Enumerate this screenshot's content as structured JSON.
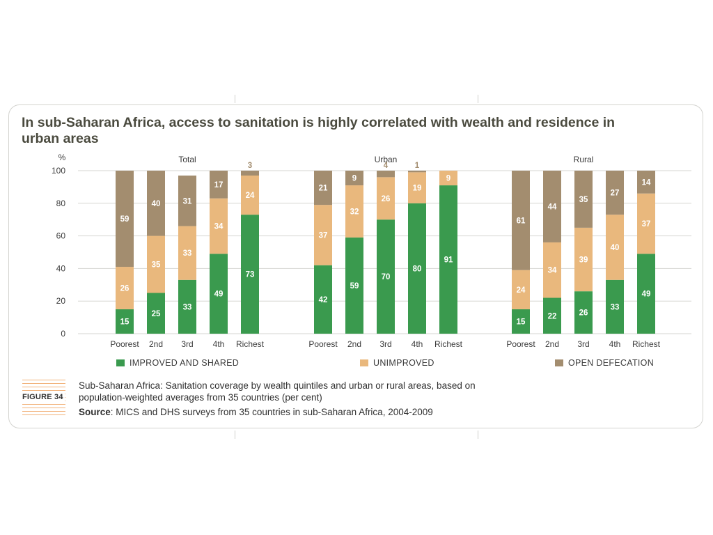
{
  "title": "In sub-Saharan Africa, access to sanitation is highly correlated with wealth and residence in urban areas",
  "figure_label": "FIGURE 34",
  "caption": "Sub-Saharan Africa: Sanitation coverage by wealth quintiles and urban or rural areas, based on population-weighted averages from 35 countries (per cent)",
  "source_label": "Source",
  "source_text": ": MICS and DHS surveys from 35 countries in sub-Saharan Africa, 2004-2009",
  "colors": {
    "improved": "#3a9a4e",
    "unimproved": "#e9b87d",
    "open_defecation": "#a38d6f",
    "label_inside": "#ffffff",
    "label_outside": "#a38d6f"
  },
  "chart_data": {
    "type": "bar",
    "stacked": true,
    "ylabel": "%",
    "ylim": [
      0,
      100
    ],
    "yticks": [
      "0",
      "20",
      "40",
      "60",
      "80",
      "100"
    ],
    "grid": true,
    "legend_position": "bottom",
    "series_names": [
      "IMPROVED AND SHARED",
      "UNIMPROVED",
      "OPEN DEFECATION"
    ],
    "panels": [
      {
        "name": "Total",
        "categories": [
          "Poorest",
          "2nd",
          "3rd",
          "4th",
          "Richest"
        ],
        "series": [
          {
            "name": "IMPROVED AND SHARED",
            "values": [
              15,
              25,
              33,
              49,
              73
            ]
          },
          {
            "name": "UNIMPROVED",
            "values": [
              26,
              35,
              33,
              34,
              24
            ]
          },
          {
            "name": "OPEN DEFECATION",
            "values": [
              59,
              40,
              31,
              17,
              3
            ]
          }
        ]
      },
      {
        "name": "Urban",
        "categories": [
          "Poorest",
          "2nd",
          "3rd",
          "4th",
          "Richest"
        ],
        "series": [
          {
            "name": "IMPROVED AND SHARED",
            "values": [
              42,
              59,
              70,
              80,
              91
            ]
          },
          {
            "name": "UNIMPROVED",
            "values": [
              37,
              32,
              26,
              19,
              9
            ]
          },
          {
            "name": "OPEN DEFECATION",
            "values": [
              21,
              9,
              4,
              1,
              null
            ]
          }
        ]
      },
      {
        "name": "Rural",
        "categories": [
          "Poorest",
          "2nd",
          "3rd",
          "4th",
          "Richest"
        ],
        "series": [
          {
            "name": "IMPROVED AND SHARED",
            "values": [
              15,
              22,
              26,
              33,
              49
            ]
          },
          {
            "name": "UNIMPROVED",
            "values": [
              24,
              34,
              39,
              40,
              37
            ]
          },
          {
            "name": "OPEN DEFECATION",
            "values": [
              61,
              44,
              35,
              27,
              14
            ]
          }
        ]
      }
    ]
  }
}
